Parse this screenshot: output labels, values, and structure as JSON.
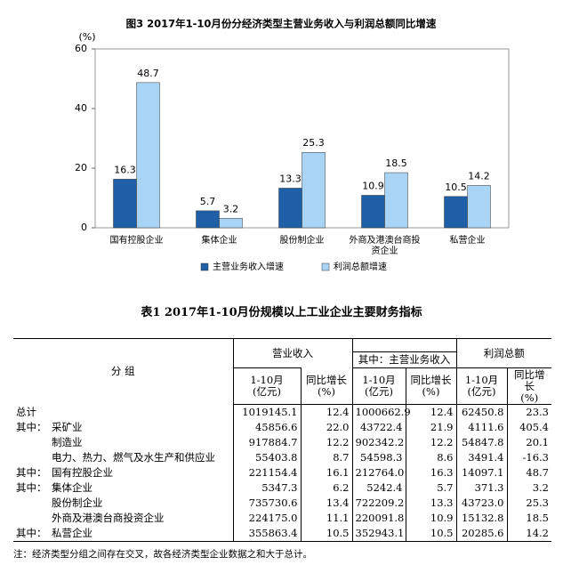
{
  "chart_data": {
    "type": "bar",
    "title": "图3 2017年1-10月份分经济类型主营业务收入与利润总额同比增速",
    "ylabel": "(%)",
    "categories": [
      "国有控股企业",
      "集体企业",
      "股份制企业",
      "外商及港澳台商投资企业",
      "私营企业"
    ],
    "series": [
      {
        "name": "主营业务收入增速",
        "color": "#1f5fa8",
        "values": [
          16.3,
          5.7,
          13.3,
          10.9,
          10.5
        ]
      },
      {
        "name": "利润总额增速",
        "color": "#a9d4f5",
        "values": [
          48.7,
          3.2,
          25.3,
          18.5,
          14.2
        ]
      }
    ],
    "ylim": [
      0,
      60
    ],
    "yticks": [
      0,
      20,
      40,
      60
    ],
    "grid": false
  },
  "table": {
    "title": "表1  2017年1-10月份规模以上工业企业主要财务指标",
    "header": {
      "group": "分  组",
      "revenue": "营业收入",
      "main_revenue": "其中：主营业务收入",
      "profit": "利润总额",
      "amount": [
        "1-10月",
        "(亿元)"
      ],
      "growth": [
        "同比增长",
        "(%)"
      ]
    },
    "total": {
      "label": "总计",
      "cells": [
        "1019145.1",
        "12.4",
        "1000662.9",
        "12.4",
        "62450.8",
        "23.3"
      ]
    },
    "groups": [
      {
        "prefix": "其中：",
        "rows": [
          {
            "label": "采矿业",
            "cells": [
              "45856.6",
              "22.0",
              "43722.4",
              "21.9",
              "4111.6",
              "405.4"
            ]
          },
          {
            "label": "制造业",
            "cells": [
              "917884.7",
              "12.2",
              "902342.2",
              "12.2",
              "54847.8",
              "20.1"
            ]
          },
          {
            "label": "电力、热力、燃气及水生产和供应业",
            "cells": [
              "55403.8",
              "8.7",
              "54598.3",
              "8.6",
              "3491.4",
              "-16.3"
            ]
          }
        ]
      },
      {
        "prefix": "其中：",
        "rows": [
          {
            "label": "国有控股企业",
            "cells": [
              "221154.4",
              "16.1",
              "212764.0",
              "16.3",
              "14097.1",
              "48.7"
            ]
          }
        ]
      },
      {
        "prefix": "其中：",
        "rows": [
          {
            "label": "集体企业",
            "cells": [
              "5347.3",
              "6.2",
              "5242.4",
              "5.7",
              "371.3",
              "3.2"
            ]
          },
          {
            "label": "股份制企业",
            "cells": [
              "735730.6",
              "13.4",
              "722209.2",
              "13.3",
              "43723.0",
              "25.3"
            ]
          },
          {
            "label": "外商及港澳台商投资企业",
            "cells": [
              "224175.0",
              "11.1",
              "220091.8",
              "10.9",
              "15132.8",
              "18.5"
            ]
          }
        ]
      },
      {
        "prefix": "其中：",
        "rows": [
          {
            "label": "私营企业",
            "cells": [
              "355863.4",
              "10.5",
              "352943.1",
              "10.5",
              "20285.6",
              "14.2"
            ]
          }
        ]
      }
    ]
  },
  "note": "注：经济类型分组之间存在交叉，故各经济类型企业数据之和大于总计。"
}
